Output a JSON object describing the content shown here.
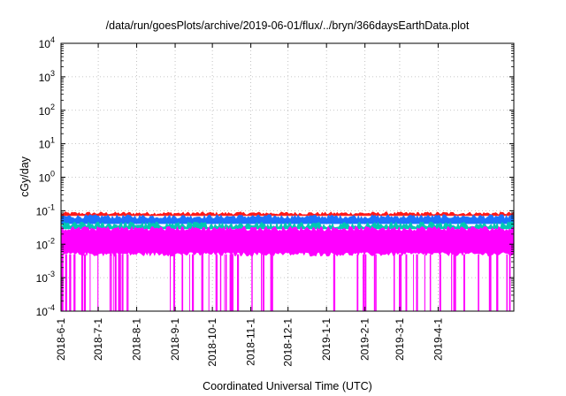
{
  "chart_data": {
    "type": "area",
    "title": "/data/run/goesPlots/archive/2019-06-01/flux/../bryn/366daysEarthData.plot",
    "xlabel": "Coordinated Universal Time (UTC)",
    "ylabel": "cGy/day",
    "yscale": "log",
    "ylim": [
      0.0001,
      10000
    ],
    "xlim": [
      "2018-06-01",
      "2019-06-01"
    ],
    "grid": true,
    "y_ticks": [
      {
        "base": "10",
        "exp": "-4"
      },
      {
        "base": "10",
        "exp": "-3"
      },
      {
        "base": "10",
        "exp": "-2"
      },
      {
        "base": "10",
        "exp": "-1"
      },
      {
        "base": "10",
        "exp": "0"
      },
      {
        "base": "10",
        "exp": "1"
      },
      {
        "base": "10",
        "exp": "2"
      },
      {
        "base": "10",
        "exp": "3"
      },
      {
        "base": "10",
        "exp": "4"
      }
    ],
    "x_ticks": [
      "2018-6-1",
      "2018-7-1",
      "2018-8-1",
      "2018-9-1",
      "2018-10-1",
      "2018-11-1",
      "2018-12-1",
      "2019-1-1",
      "2019-2-1",
      "2019-3-1",
      "2019-4-1"
    ],
    "series": [
      {
        "color": "#ff1a1a",
        "typical_peak": 0.085,
        "typical_low": 0.07
      },
      {
        "color": "#1a73ff",
        "typical_peak": 0.068,
        "typical_low": 0.04
      },
      {
        "color": "#00c8b4",
        "typical_peak": 0.04,
        "typical_low": 0.028
      },
      {
        "color": "#ff00ff",
        "typical_peak": 0.03,
        "typical_low": 0.005,
        "dropouts_to": 0.0001
      }
    ]
  }
}
